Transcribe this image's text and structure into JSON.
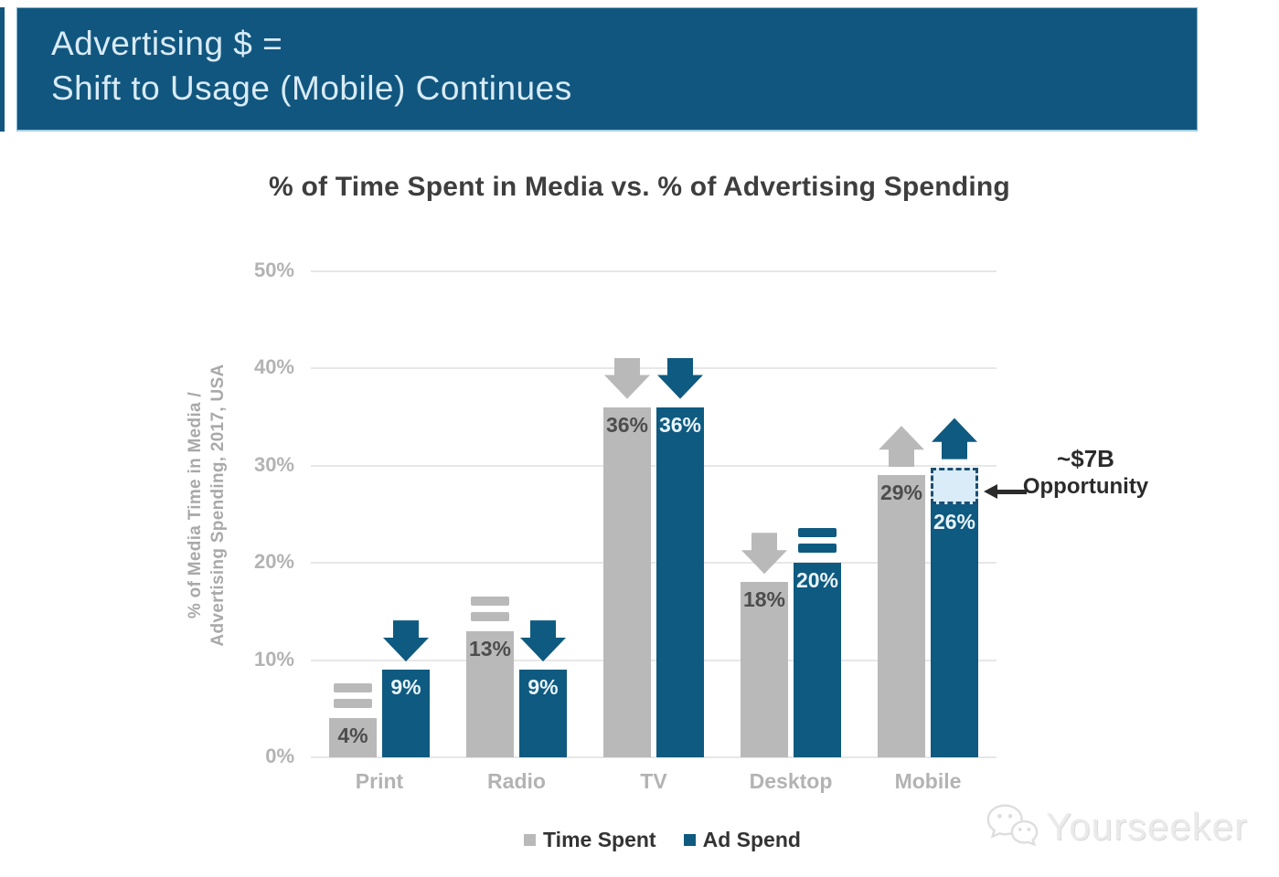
{
  "header": {
    "line1": "Advertising $ =",
    "line2": "Shift to Usage (Mobile) Continues"
  },
  "chart_data": {
    "type": "bar",
    "title": "% of Time Spent in Media vs. % of Advertising Spending",
    "ylabel_line1": "% of Media Time in Media /",
    "ylabel_line2": "Advertising Spending, 2017, USA",
    "ylim": [
      0,
      50
    ],
    "ytick_values": [
      0,
      10,
      20,
      30,
      40,
      50
    ],
    "ytick_labels": [
      "0%",
      "10%",
      "20%",
      "30%",
      "40%",
      "50%"
    ],
    "grid": "horizontal",
    "legend_position": "bottom",
    "categories": [
      "Print",
      "Radio",
      "TV",
      "Desktop",
      "Mobile"
    ],
    "series": [
      {
        "name": "Time Spent",
        "color": "#b9b9b9",
        "label_color": "#4d4d4d",
        "values": [
          4,
          13,
          36,
          18,
          29
        ],
        "labels": [
          "4%",
          "13%",
          "36%",
          "18%",
          "29%"
        ],
        "indicators": [
          "equals",
          "equals",
          "down",
          "down",
          "up"
        ]
      },
      {
        "name": "Ad Spend",
        "color": "#0f5a80",
        "label_color": "#e9f4fb",
        "values": [
          9,
          9,
          36,
          20,
          26
        ],
        "labels": [
          "9%",
          "9%",
          "36%",
          "20%",
          "26%"
        ],
        "indicators": [
          "down",
          "down",
          "down",
          "equals",
          "up"
        ]
      }
    ],
    "annotation": {
      "line1": "~$7B",
      "line2": "Opportunity",
      "target_category": "Mobile",
      "target_series": "Ad Spend",
      "box_from_pct": 26,
      "box_to_pct": 29.8,
      "box_fill": "#d9ecf8",
      "box_border": "#1c4e73"
    }
  },
  "legend": [
    {
      "label": "Time Spent",
      "color": "#b9b9b9"
    },
    {
      "label": "Ad Spend",
      "color": "#0f5a80"
    }
  ],
  "watermark": {
    "text": "Yourseeker"
  },
  "colors": {
    "banner_bg": "#11567e",
    "banner_text": "#d8ebf7",
    "title_text": "#3e3e3e",
    "axis_text": "#b3b3b3",
    "gridline": "#e7e7e7"
  }
}
